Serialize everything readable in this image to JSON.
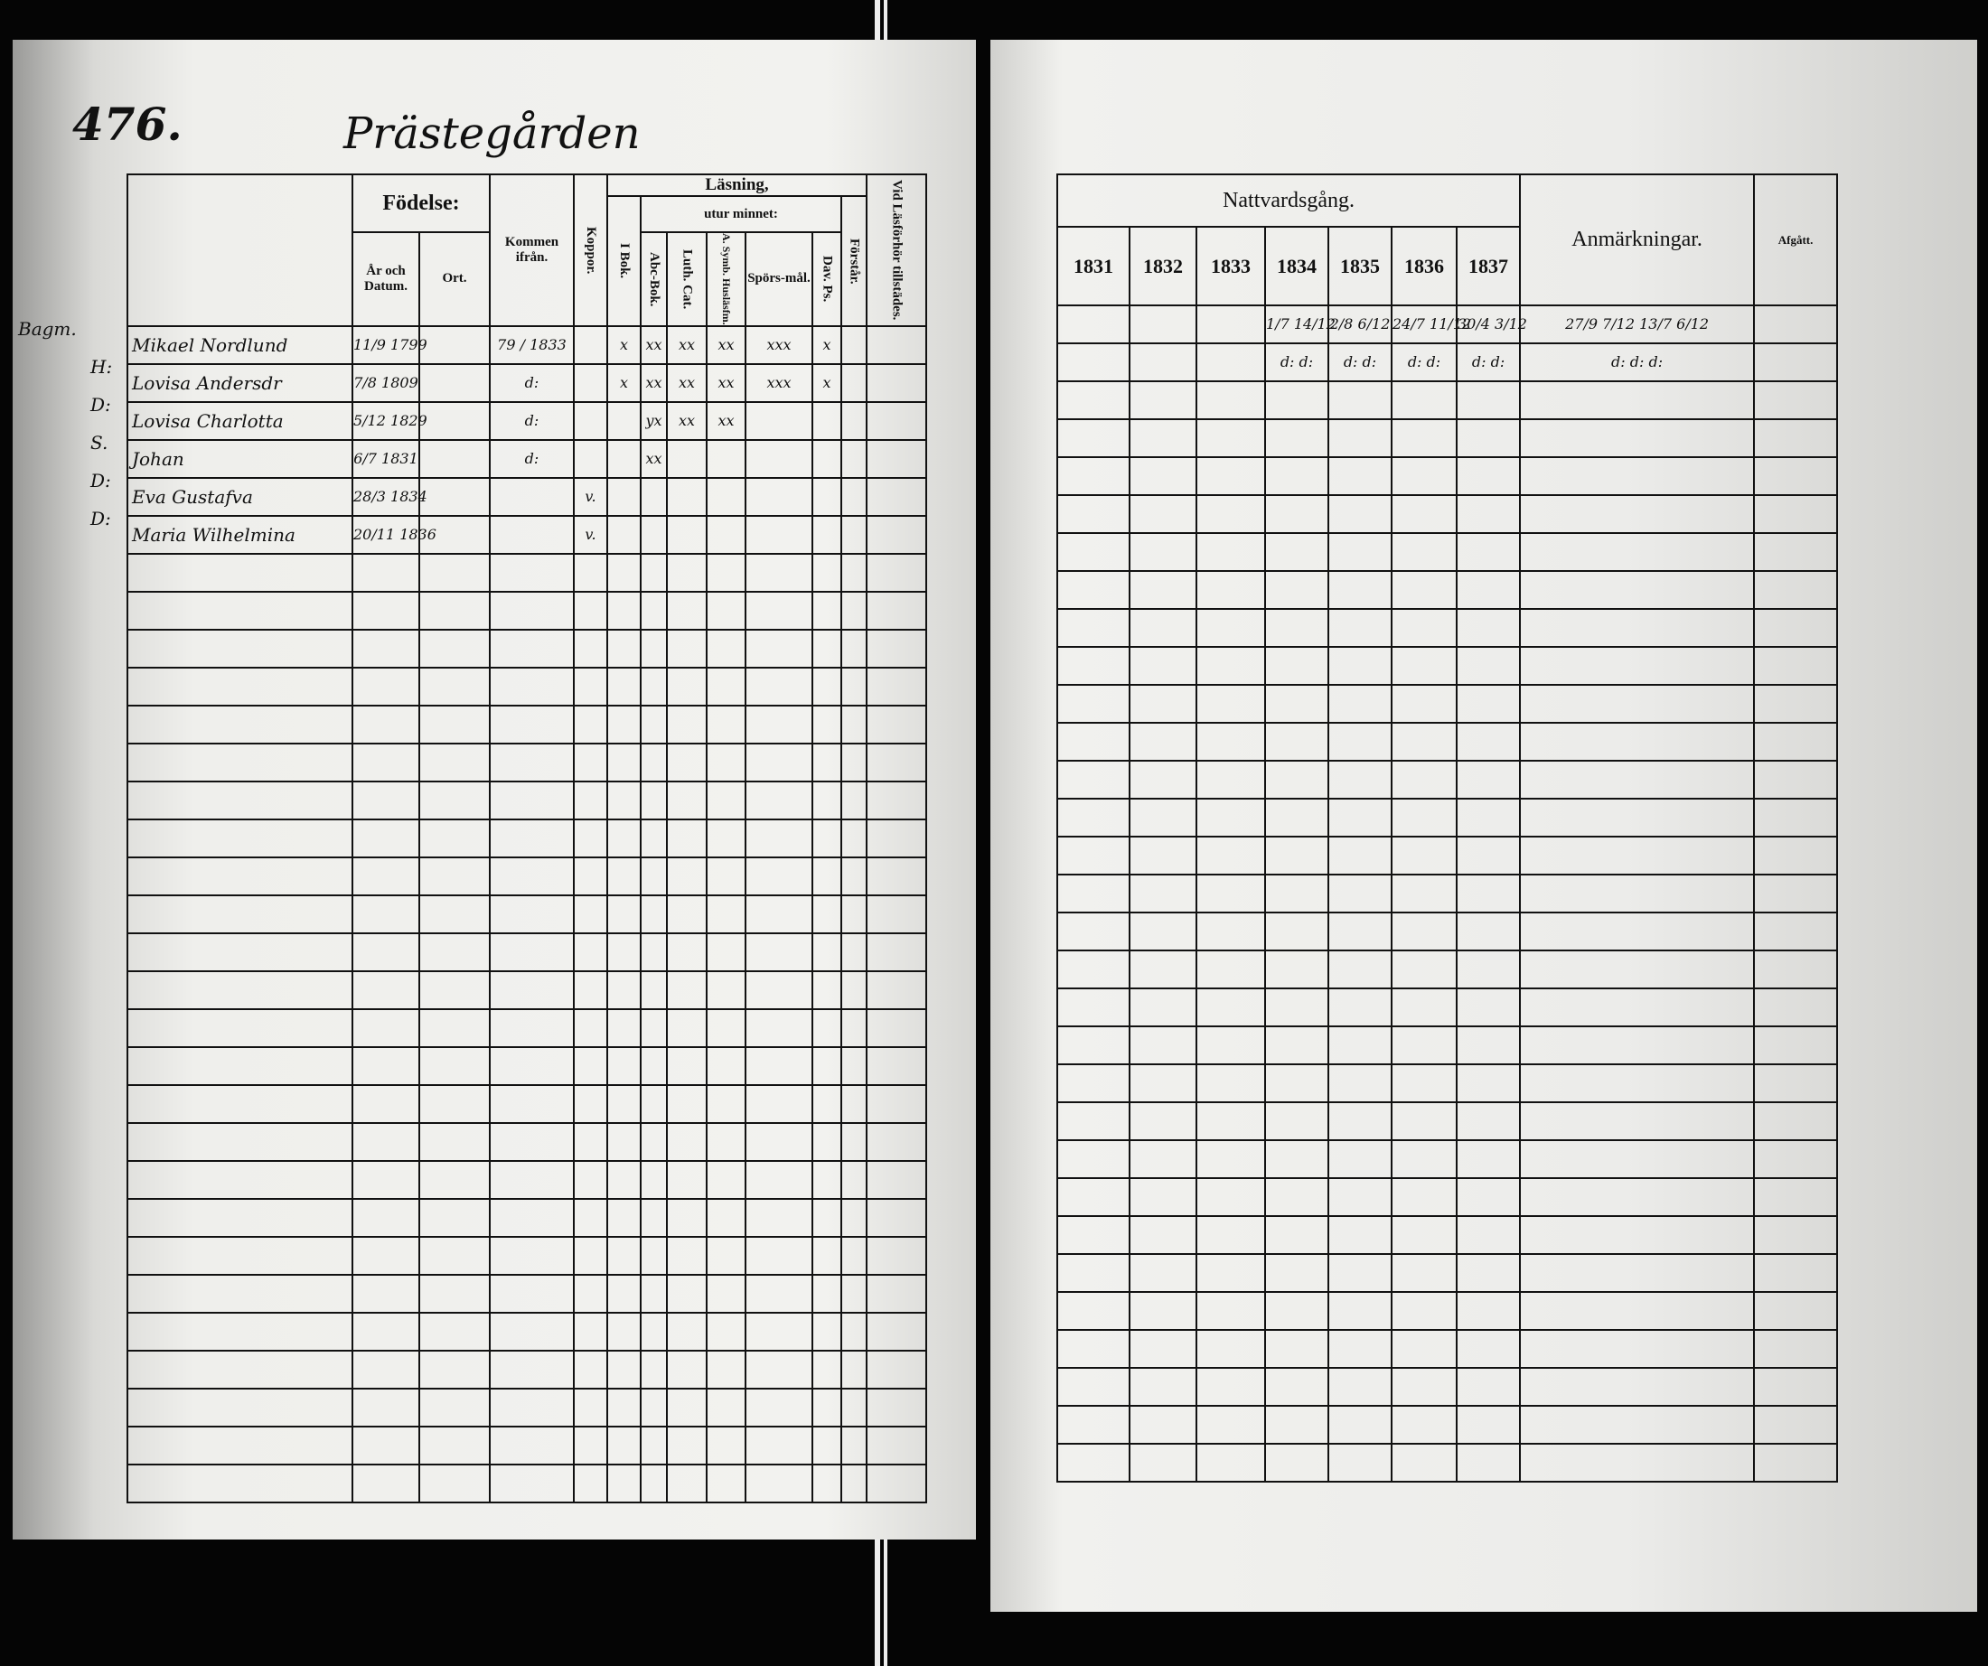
{
  "left_page": {
    "page_number": "476.",
    "title": "Prästegården",
    "headers": {
      "fodelse": "Födelse:",
      "ar_och_datum": "År och Datum.",
      "ort": "Ort.",
      "kommen_ifran": "Kommen ifrån.",
      "koppor": "Koppor.",
      "lasning": "Läsning,",
      "i_bok": "I Bok.",
      "utur_minnet": "utur minnet:",
      "abc_bok": "Abc-Bok.",
      "luth_cat": "Luth. Cat.",
      "a_symb": "A. Symb. Husläsfm.",
      "sporsmal": "Spörs-mål.",
      "dav_ps": "Dav. Ps.",
      "forstar": "Förstår.",
      "vid_lasforhor": "Vid Läsförhör tillstädes."
    },
    "rows": [
      {
        "role": "Bagm.",
        "name": "Mikael Nordlund",
        "born": "11/9 1799",
        "kommen": "79 / 1833",
        "koppor": "",
        "i_bok": "x",
        "abc": "xx",
        "luth": "xx",
        "symb": "xx",
        "spors": "xxx",
        "dav": "x"
      },
      {
        "role": "H:",
        "name": "Lovisa Andersdr",
        "born": "7/8 1809",
        "kommen": "d:",
        "koppor": "",
        "i_bok": "x",
        "abc": "xx",
        "luth": "xx",
        "symb": "xx",
        "spors": "xxx",
        "dav": "x"
      },
      {
        "role": "D:",
        "name": "Lovisa Charlotta",
        "born": "5/12 1829",
        "kommen": "d:",
        "koppor": "",
        "i_bok": "",
        "abc": "yx",
        "luth": "xx",
        "symb": "xx",
        "spors": "",
        "dav": ""
      },
      {
        "role": "S.",
        "name": "Johan",
        "born": "6/7 1831",
        "kommen": "d:",
        "koppor": "",
        "i_bok": "",
        "abc": "xx",
        "luth": "",
        "symb": "",
        "spors": "",
        "dav": ""
      },
      {
        "role": "D:",
        "name": "Eva Gustafva",
        "born": "28/3 1834",
        "kommen": "",
        "koppor": "v.",
        "i_bok": "",
        "abc": "",
        "luth": "",
        "symb": "",
        "spors": "",
        "dav": ""
      },
      {
        "role": "D:",
        "name": "Maria Wilhelmina",
        "born": "20/11 1836",
        "kommen": "",
        "koppor": "v.",
        "i_bok": "",
        "abc": "",
        "luth": "",
        "symb": "",
        "spors": "",
        "dav": ""
      }
    ]
  },
  "right_page": {
    "headers": {
      "nattvardsgang": "Nattvardsgång.",
      "years": [
        "1831",
        "1832",
        "1833",
        "1834",
        "1835",
        "1836",
        "1837"
      ],
      "anmarkningar": "Anmärkningar.",
      "afgatt": "Afgått."
    },
    "rows": [
      {
        "years": [
          "",
          "",
          "",
          "1/7 14/12",
          "2/8 6/12",
          "24/7 11/12",
          "30/4 3/12"
        ],
        "anm": "27/9 7/12   13/7   6/12"
      },
      {
        "years": [
          "",
          "",
          "",
          "d: d:",
          "d: d:",
          "d: d:",
          "d: d:"
        ],
        "anm": "d:   d:   d:"
      }
    ]
  }
}
